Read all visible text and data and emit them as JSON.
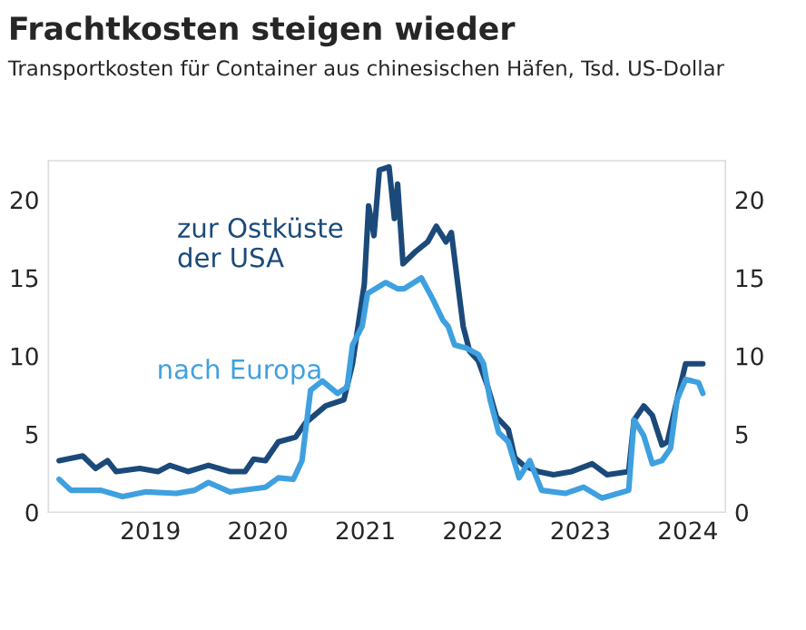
{
  "chart_data": {
    "type": "line",
    "title": "Frachtkosten steigen wieder",
    "subtitle": "Transportkosten für Container aus chinesischen Häfen, Tsd. US-Dollar",
    "xlim": [
      2018.55,
      2024.85
    ],
    "xticks": [
      {
        "value": 2019.5,
        "label": "2019"
      },
      {
        "value": 2020.5,
        "label": "2020"
      },
      {
        "value": 2021.5,
        "label": "2021"
      },
      {
        "value": 2022.5,
        "label": "2022"
      },
      {
        "value": 2023.5,
        "label": "2023"
      },
      {
        "value": 2024.5,
        "label": "2024"
      }
    ],
    "ylim": [
      0,
      22.5
    ],
    "yticks": [
      0,
      5,
      10,
      15,
      20
    ],
    "y2lim": [
      0,
      22.5
    ],
    "y2ticks": [
      0,
      5,
      10,
      15,
      20
    ],
    "grid": false,
    "legend": false,
    "series": [
      {
        "name": "zur Ostküste\nder USA",
        "color": "#1b4a7a",
        "x": [
          2018.65,
          2018.87,
          2018.99,
          2019.1,
          2019.18,
          2019.4,
          2019.57,
          2019.68,
          2019.85,
          2020.04,
          2020.24,
          2020.38,
          2020.46,
          2020.57,
          2020.69,
          2020.85,
          2020.94,
          2021.13,
          2021.3,
          2021.38,
          2021.49,
          2021.53,
          2021.58,
          2021.63,
          2021.72,
          2021.77,
          2021.8,
          2021.85,
          2021.97,
          2022.08,
          2022.16,
          2022.25,
          2022.3,
          2022.36,
          2022.41,
          2022.47,
          2022.55,
          2022.64,
          2022.72,
          2022.83,
          2022.89,
          2022.97,
          2023.11,
          2023.25,
          2023.42,
          2023.61,
          2023.75,
          2023.95,
          2024.0,
          2024.09,
          2024.17,
          2024.26,
          2024.31,
          2024.4,
          2024.48,
          2024.56,
          2024.64
        ],
        "values": [
          3.3,
          3.6,
          2.8,
          3.3,
          2.6,
          2.8,
          2.6,
          3.0,
          2.6,
          3.0,
          2.6,
          2.6,
          3.4,
          3.3,
          4.5,
          4.8,
          5.7,
          6.8,
          7.2,
          9.5,
          14.6,
          19.6,
          17.7,
          21.9,
          22.1,
          18.8,
          21.0,
          15.9,
          16.7,
          17.3,
          18.3,
          17.3,
          17.9,
          14.6,
          11.9,
          10.3,
          9.7,
          8.0,
          6.1,
          5.3,
          3.5,
          3.0,
          2.6,
          2.4,
          2.6,
          3.1,
          2.4,
          2.6,
          5.9,
          6.8,
          6.2,
          4.3,
          4.5,
          7.2,
          9.5,
          9.5,
          9.5
        ]
      },
      {
        "name": "nach Europa",
        "color": "#3fa0e0",
        "x": [
          2018.65,
          2018.76,
          2019.04,
          2019.24,
          2019.46,
          2019.74,
          2019.91,
          2020.04,
          2020.24,
          2020.57,
          2020.69,
          2020.83,
          2020.91,
          2020.99,
          2021.1,
          2021.24,
          2021.33,
          2021.38,
          2021.47,
          2021.52,
          2021.69,
          2021.8,
          2021.86,
          2022.02,
          2022.13,
          2022.22,
          2022.27,
          2022.33,
          2022.44,
          2022.55,
          2022.6,
          2022.66,
          2022.74,
          2022.83,
          2022.93,
          2023.03,
          2023.14,
          2023.36,
          2023.53,
          2023.7,
          2023.95,
          2024.0,
          2024.09,
          2024.17,
          2024.26,
          2024.34,
          2024.4,
          2024.48,
          2024.6,
          2024.64
        ],
        "values": [
          2.1,
          1.4,
          1.4,
          1.0,
          1.3,
          1.2,
          1.4,
          1.9,
          1.3,
          1.6,
          2.2,
          2.1,
          3.3,
          7.8,
          8.4,
          7.6,
          8.0,
          10.7,
          11.9,
          14.0,
          14.7,
          14.3,
          14.3,
          15.0,
          13.6,
          12.3,
          11.9,
          10.7,
          10.5,
          10.1,
          9.5,
          7.2,
          5.1,
          4.5,
          2.2,
          3.3,
          1.4,
          1.2,
          1.6,
          0.9,
          1.4,
          5.9,
          4.9,
          3.1,
          3.3,
          4.1,
          7.2,
          8.5,
          8.3,
          7.6
        ]
      }
    ]
  }
}
